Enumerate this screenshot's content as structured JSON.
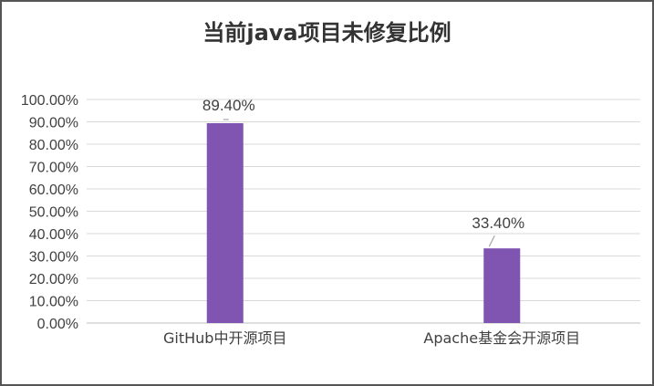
{
  "chart_data": {
    "type": "bar",
    "title": "当前java项目未修复比例",
    "categories": [
      "GitHub中开源项目",
      "Apache基金会开源项目"
    ],
    "values": [
      89.4,
      33.4
    ],
    "data_labels": [
      "89.40%",
      "33.40%"
    ],
    "ylim": [
      0,
      100
    ],
    "yticks": [
      0,
      10,
      20,
      30,
      40,
      50,
      60,
      70,
      80,
      90,
      100
    ],
    "ytick_labels": [
      "0.00%",
      "10.00%",
      "20.00%",
      "30.00%",
      "40.00%",
      "50.00%",
      "60.00%",
      "70.00%",
      "80.00%",
      "90.00%",
      "100.00%"
    ],
    "grid": true,
    "legend": "none",
    "bar_color": "#7f55b1",
    "grid_color": "#d9d9d9",
    "axis_color": "#bfbfbf"
  }
}
